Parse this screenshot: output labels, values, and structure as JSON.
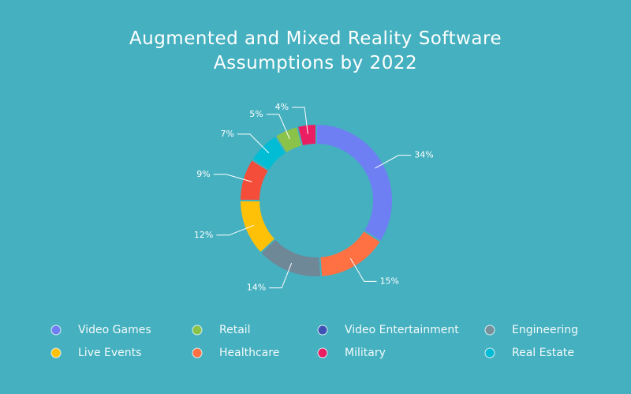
{
  "chart_data": {
    "type": "donut",
    "title": "Augmented and Mixed Reality Software Assumptions by 2022",
    "values": [
      34,
      15,
      14,
      12,
      9,
      7,
      5,
      4
    ],
    "value_labels": [
      "34%",
      "15%",
      "14%",
      "12%",
      "9%",
      "7%",
      "5%",
      "4%"
    ],
    "colors": [
      "#6e7ff3",
      "#ff7043",
      "#6e8898",
      "#ffc107",
      "#f44e3b",
      "#00bcd4",
      "#8bc34a",
      "#e91e63"
    ],
    "legend": [
      {
        "name": "Video Games",
        "color": "#6e7ff3"
      },
      {
        "name": "Retail",
        "color": "#8bc34a"
      },
      {
        "name": "Video Entertainment",
        "color": "#3f51b5"
      },
      {
        "name": "Engineering",
        "color": "#78909c"
      },
      {
        "name": "Live Events",
        "color": "#ffc107"
      },
      {
        "name": "Healthcare",
        "color": "#ff7043"
      },
      {
        "name": "Military",
        "color": "#e91e63"
      },
      {
        "name": "Real Estate",
        "color": "#00bcd4"
      }
    ]
  }
}
